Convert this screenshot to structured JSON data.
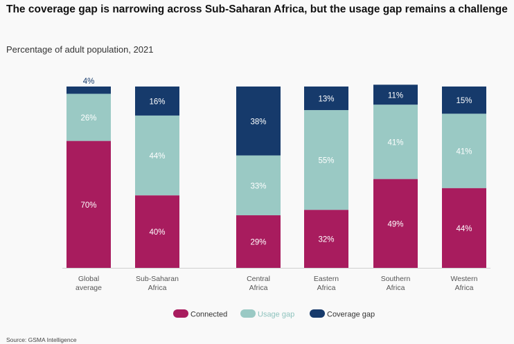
{
  "title": "The coverage gap is narrowing across Sub-Saharan Africa, but the usage gap remains a challenge",
  "subtitle": "Percentage of adult population, 2021",
  "source": "Source: GSMA Intelligence",
  "chart_data": {
    "type": "bar",
    "stacked": true,
    "categories": [
      [
        "Global",
        "average"
      ],
      [
        "Sub-Saharan",
        "Africa"
      ],
      [
        "Central",
        "Africa"
      ],
      [
        "Eastern",
        "Africa"
      ],
      [
        "Southern",
        "Africa"
      ],
      [
        "Western",
        "Africa"
      ]
    ],
    "series": [
      {
        "name": "Connected",
        "color": "#a81c5e",
        "values": [
          70,
          40,
          29,
          32,
          49,
          44
        ]
      },
      {
        "name": "Usage gap",
        "color": "#9ac9c4",
        "values": [
          26,
          44,
          33,
          55,
          41,
          41
        ]
      },
      {
        "name": "Coverage gap",
        "color": "#163a6b",
        "values": [
          4,
          16,
          38,
          13,
          11,
          15
        ]
      }
    ],
    "data_labels": [
      [
        "70%",
        "40%",
        "29%",
        "32%",
        "49%",
        "44%"
      ],
      [
        "26%",
        "44%",
        "33%",
        "55%",
        "41%",
        "41%"
      ],
      [
        "4%",
        "16%",
        "38%",
        "13%",
        "11%",
        "15%"
      ]
    ],
    "ylim": [
      0,
      100
    ],
    "grid": false,
    "legend": "bottom-center",
    "xlabel": "",
    "ylabel": ""
  }
}
